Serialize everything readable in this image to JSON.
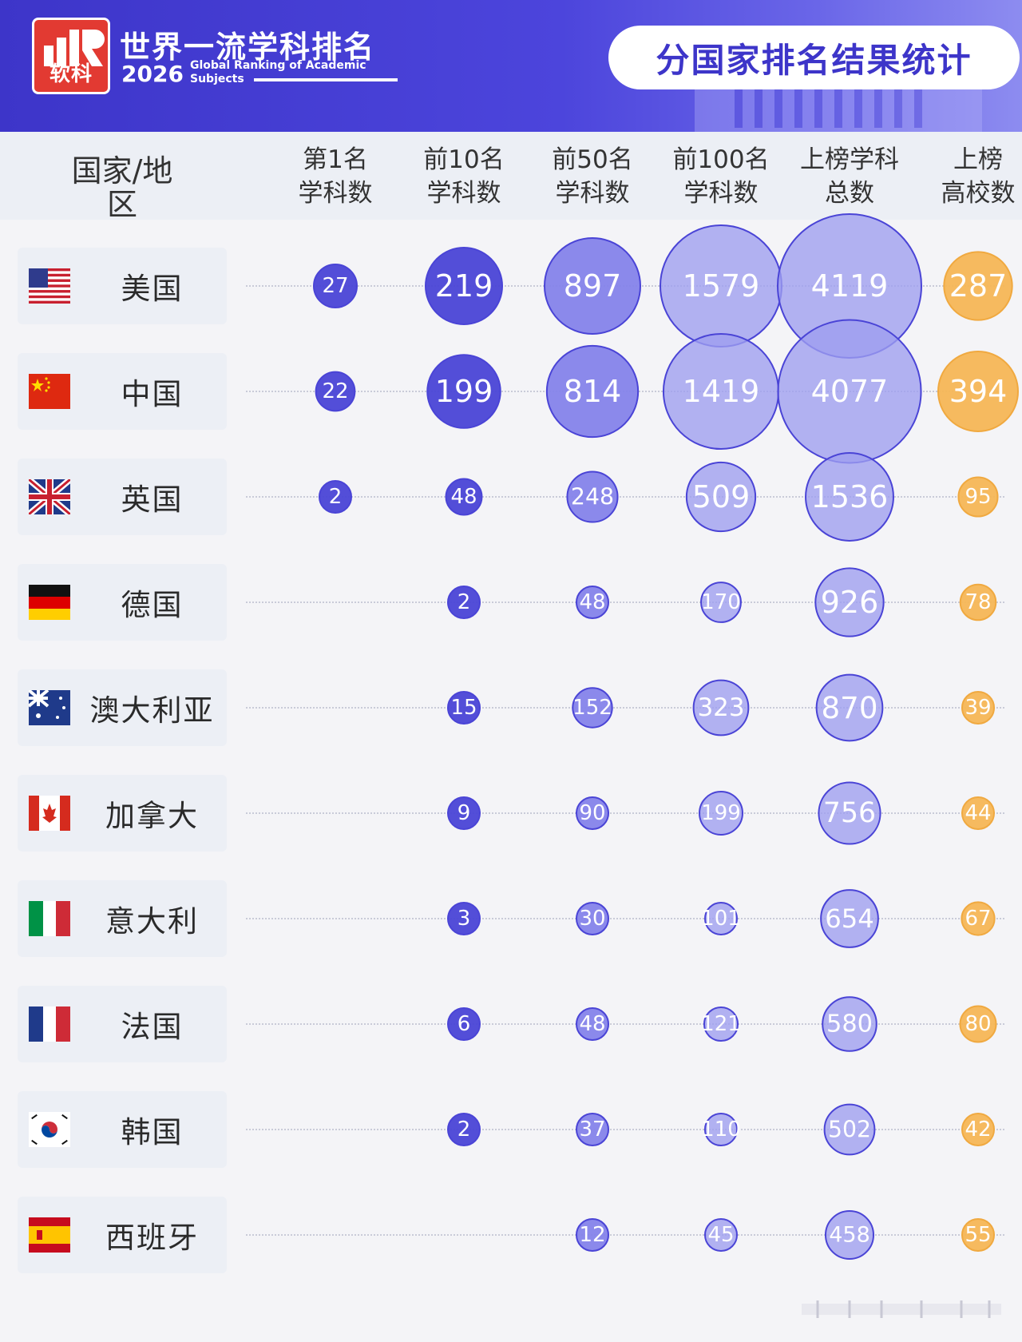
{
  "banner": {
    "logo_text": "软科",
    "title_cn": "世界一流学科排名",
    "year": "2026",
    "title_en": "Global Ranking of Academic Subjects",
    "pill_text": "分国家排名结果统计"
  },
  "columns": [
    {
      "label": "国家/地区"
    },
    {
      "label": "第1名\n学科数"
    },
    {
      "label": "前10名\n学科数"
    },
    {
      "label": "前50名\n学科数"
    },
    {
      "label": "前100名\n学科数"
    },
    {
      "label": "上榜学科\n总数"
    },
    {
      "label": "上榜\n高校数"
    }
  ],
  "colors": {
    "bubble": "#4a44d6",
    "bubble_light": "#8583ea",
    "bubble_total": "#9e9df0",
    "schools": "#f5b656",
    "text_on_bubble": "#ffffff"
  },
  "chart_data": {
    "type": "table",
    "categories": [
      "美国",
      "中国",
      "英国",
      "德国",
      "澳大利亚",
      "加拿大",
      "意大利",
      "法国",
      "韩国",
      "西班牙"
    ],
    "flags": [
      "us-flag",
      "cn-flag",
      "gb-flag",
      "de-flag",
      "au-flag",
      "ca-flag",
      "it-flag",
      "fr-flag",
      "kr-flag",
      "es-flag"
    ],
    "series": [
      {
        "name": "第1名学科数",
        "values": [
          27,
          22,
          2,
          null,
          null,
          null,
          null,
          null,
          null,
          null
        ]
      },
      {
        "name": "前10名学科数",
        "values": [
          219,
          199,
          48,
          2,
          15,
          9,
          3,
          6,
          2,
          null
        ]
      },
      {
        "name": "前50名学科数",
        "values": [
          897,
          814,
          248,
          48,
          152,
          90,
          30,
          48,
          37,
          12
        ]
      },
      {
        "name": "前100名学科数",
        "values": [
          1579,
          1419,
          509,
          170,
          323,
          199,
          101,
          121,
          110,
          45
        ]
      },
      {
        "name": "上榜学科总数",
        "values": [
          4119,
          4077,
          1536,
          926,
          870,
          756,
          654,
          580,
          502,
          458
        ]
      },
      {
        "name": "上榜高校数",
        "values": [
          287,
          394,
          95,
          78,
          39,
          44,
          67,
          80,
          42,
          55
        ]
      }
    ]
  }
}
